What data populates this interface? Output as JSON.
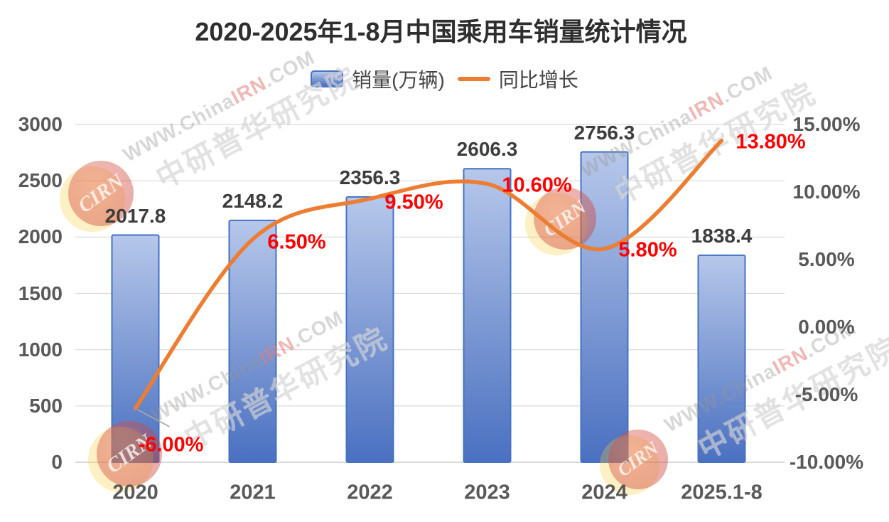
{
  "title": "2020-2025年1-8月中国乘用车销量统计情况",
  "legend": {
    "sales_label": "销量(万辆)",
    "growth_label": "同比增长"
  },
  "chart_data": {
    "type": "bar+line",
    "title": "2020-2025年1-8月中国乘用车销量统计情况",
    "categories": [
      "2020",
      "2021",
      "2022",
      "2023",
      "2024",
      "2025.1-8"
    ],
    "series": [
      {
        "name": "销量(万辆)",
        "type": "bar",
        "axis": "left",
        "values": [
          2017.8,
          2148.2,
          2356.3,
          2606.3,
          2756.3,
          1838.4
        ],
        "data_labels": [
          "2017.8",
          "2148.2",
          "2356.3",
          "2606.3",
          "2756.3",
          "1838.4"
        ]
      },
      {
        "name": "同比增长",
        "type": "line",
        "axis": "right",
        "values": [
          -6.0,
          6.5,
          9.5,
          10.6,
          5.8,
          13.8
        ],
        "data_labels": [
          "-6.00%",
          "6.50%",
          "9.50%",
          "10.60%",
          "5.80%",
          "13.80%"
        ]
      }
    ],
    "left_axis": {
      "min": 0,
      "max": 3000,
      "step": 500,
      "tick_labels": [
        "0",
        "500",
        "1000",
        "1500",
        "2000",
        "2500",
        "3000"
      ]
    },
    "right_axis": {
      "min": -10,
      "max": 15,
      "step": 5,
      "tick_labels": [
        "15.00%",
        "10.00%",
        "5.00%",
        "0.00%",
        "-5.00%",
        "-10.00%"
      ]
    },
    "gridlines": true,
    "legend_position": "top"
  },
  "colors": {
    "bar_fill_top": "#b6c7ea",
    "bar_fill_bottom": "#4a70c0",
    "bar_border": "#4472c4",
    "line": "#ed7d31",
    "pct_label": "#fe0000",
    "value_label": "#3d3d3d",
    "axis_label": "#595959",
    "gridline": "#d9d9d9",
    "baseline": "#c2c2c2",
    "leader_line": "#a6a6a6"
  },
  "watermark": {
    "url_text": "WWW.ChinaIRN.COM",
    "cn_text": "中研普华研究院",
    "badge_text": "CIRN"
  }
}
